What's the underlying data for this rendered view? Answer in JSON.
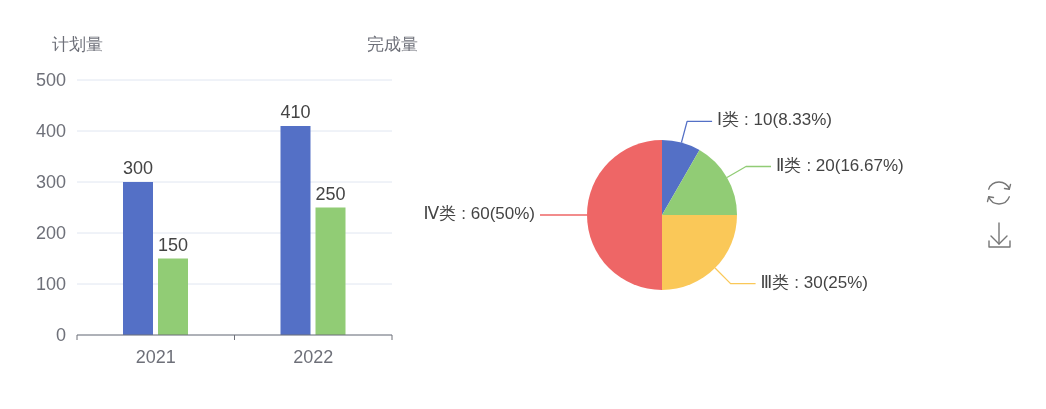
{
  "chart_data": [
    {
      "type": "bar",
      "ylabel": "计划量",
      "y2label": "完成量",
      "categories": [
        "2021",
        "2022"
      ],
      "series": [
        {
          "color": "#5470c6",
          "values": [
            300,
            410
          ]
        },
        {
          "color": "#91cc75",
          "values": [
            150,
            250
          ]
        }
      ],
      "ylim": [
        0,
        500
      ],
      "yticks": [
        0,
        100,
        200,
        300,
        400,
        500
      ],
      "grid": "y",
      "data_labels": true
    },
    {
      "type": "pie",
      "categories": [
        "Ⅰ类",
        "Ⅱ类",
        "Ⅲ类",
        "Ⅳ类"
      ],
      "values": [
        10,
        20,
        30,
        60
      ],
      "colors": [
        "#5470c6",
        "#91cc75",
        "#fac858",
        "#ee6666"
      ],
      "value_labels": [
        ": 10(8.33%)",
        ": 20(16.67%)",
        ": 30(25%)",
        ": 60(50%)"
      ]
    }
  ]
}
